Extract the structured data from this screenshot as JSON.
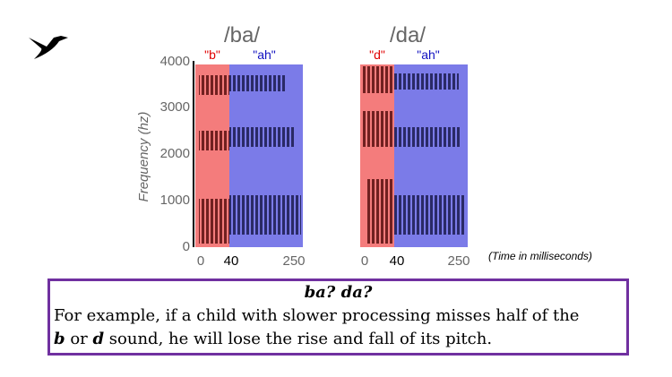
{
  "figure": {
    "panels": [
      {
        "label": "/ba/",
        "consonant": "\"b\"",
        "vowel": "\"ah\"",
        "x_ticks": [
          "0",
          "40",
          "250"
        ]
      },
      {
        "label": "/da/",
        "consonant": "\"d\"",
        "vowel": "\"ah\"",
        "x_ticks": [
          "0",
          "40",
          "250"
        ]
      }
    ],
    "y_axis_label": "Frequency (hz)",
    "y_ticks": [
      "4000",
      "3000",
      "2000",
      "1000",
      "0"
    ],
    "x_axis_note": "(Time in milliseconds)"
  },
  "caption": {
    "title": "ba? da?",
    "line1": "For example, if a child with slower processing misses half of the",
    "line2_parts": [
      "b",
      " or ",
      "d",
      " sound, he will lose the rise and fall of its pitch."
    ]
  }
}
